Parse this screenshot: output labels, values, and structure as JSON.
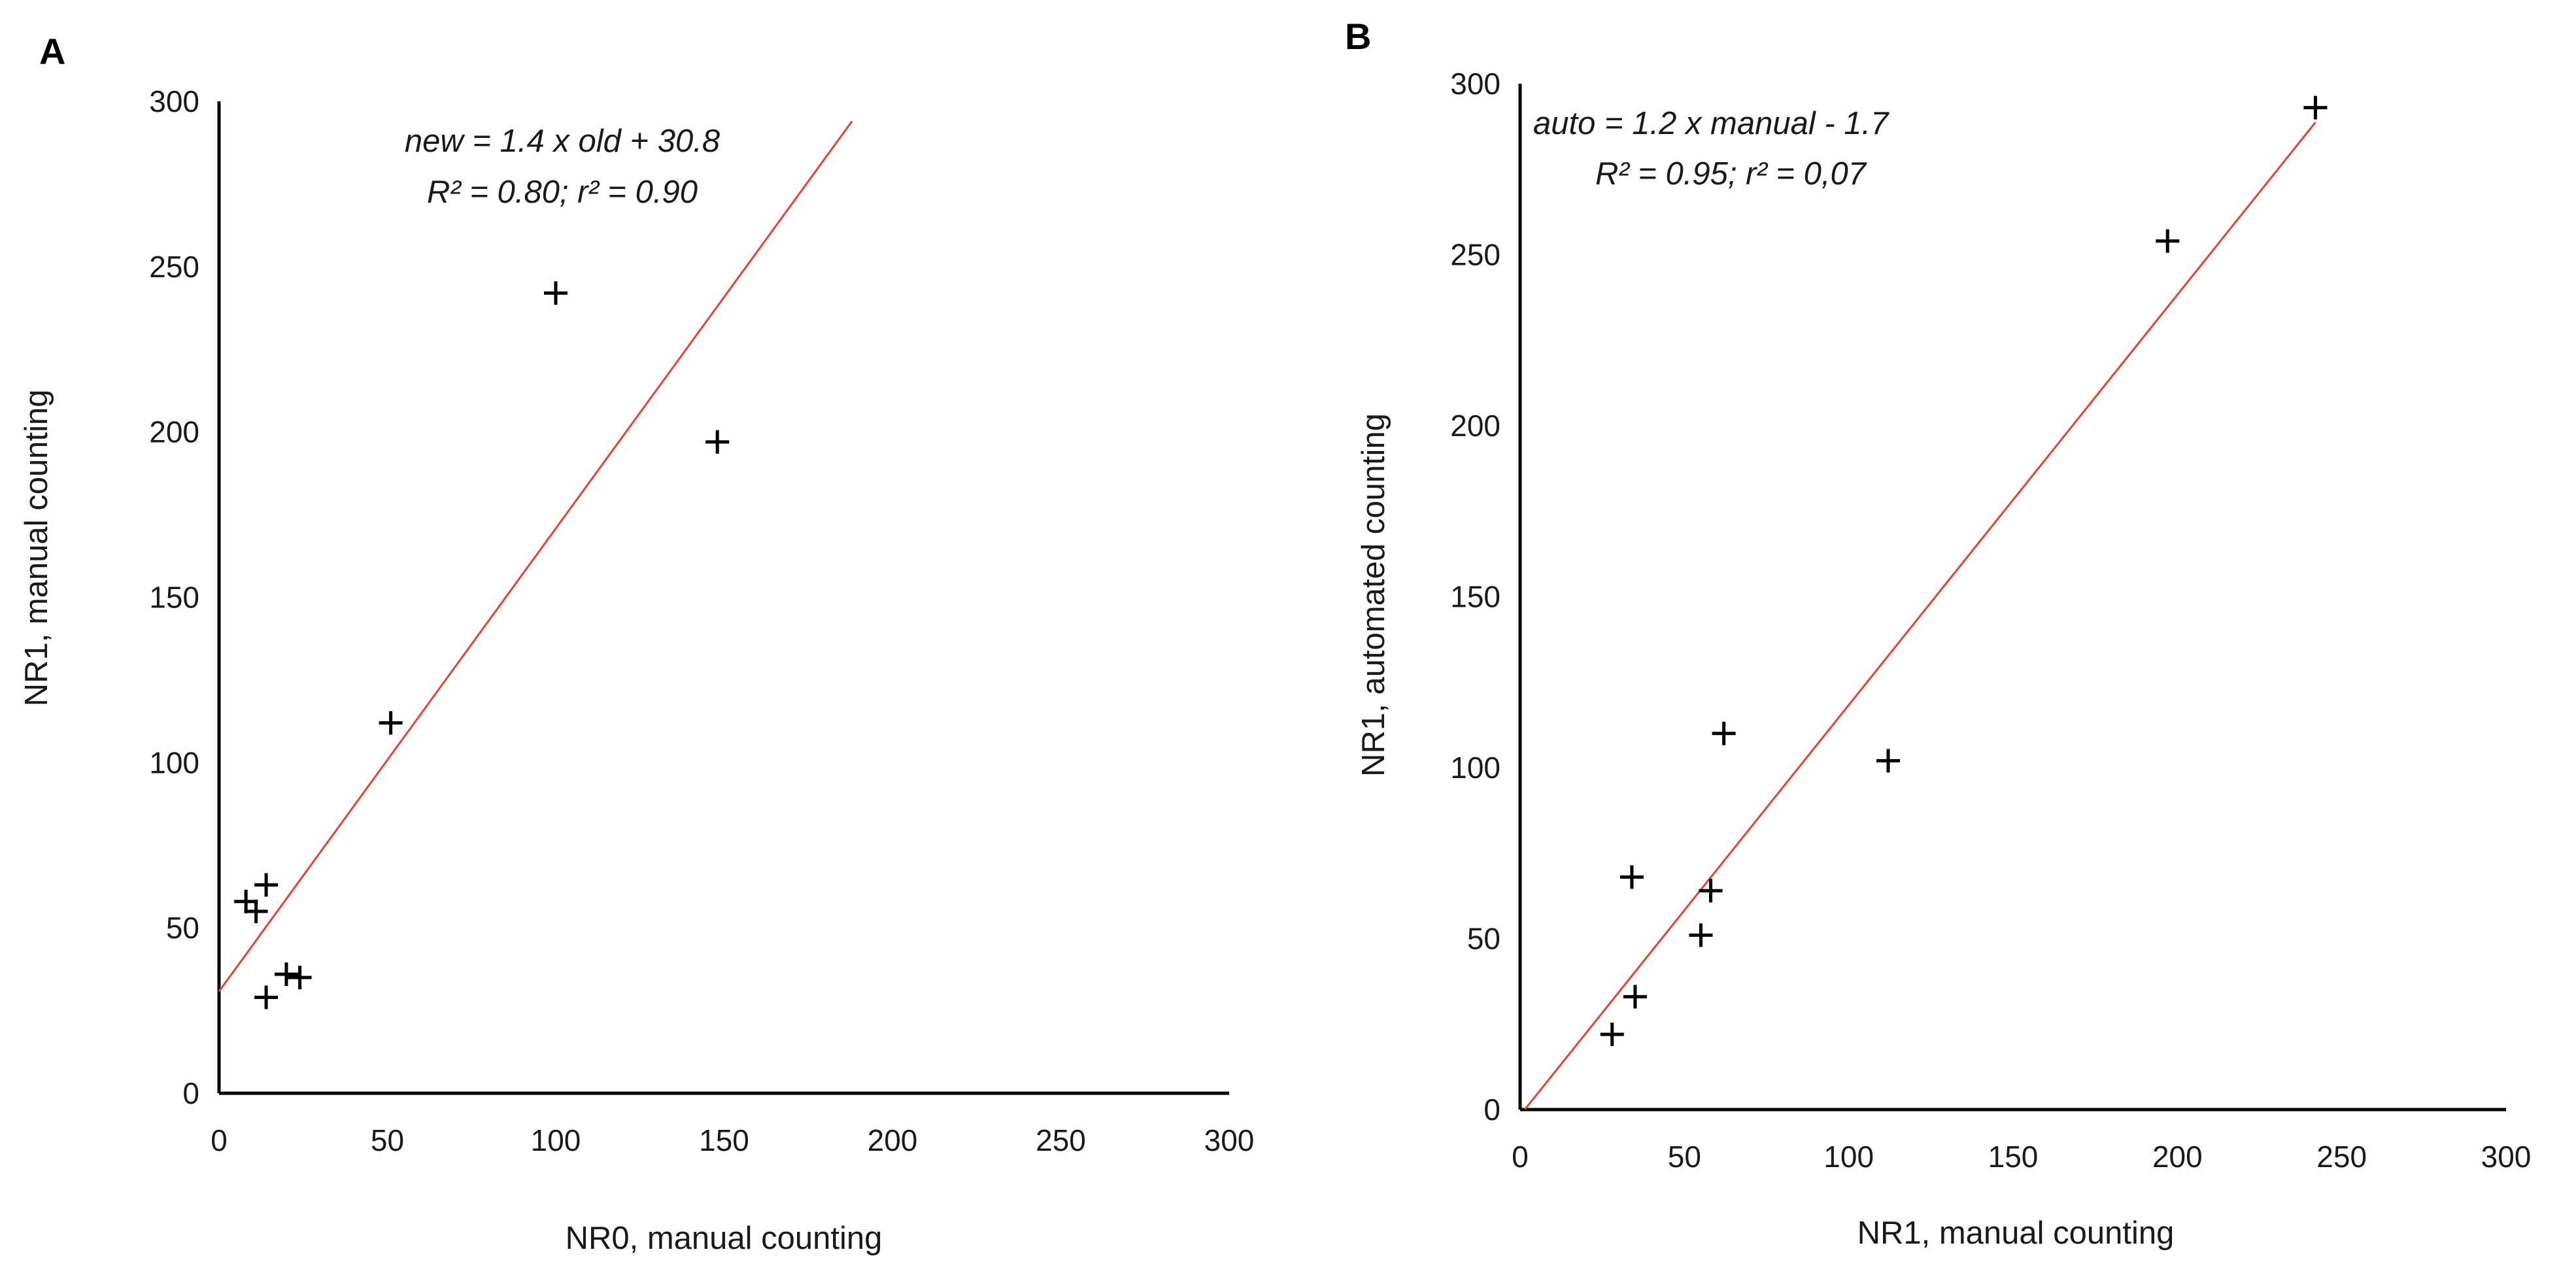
{
  "colors": {
    "fit_line": "#e8413a",
    "axes": "#000000",
    "points": "#000000"
  },
  "chart_data": [
    {
      "id": "A",
      "type": "scatter",
      "panel_label": "A",
      "xlabel": "NR0, manual counting",
      "ylabel": "NR1, manual counting",
      "xlim": [
        0,
        300
      ],
      "ylim": [
        0,
        300
      ],
      "xticks": [
        0,
        50,
        100,
        150,
        200,
        250,
        300
      ],
      "yticks": [
        0,
        50,
        100,
        150,
        200,
        250,
        300
      ],
      "marker": "plus",
      "points": [
        {
          "x": 8,
          "y": 58
        },
        {
          "x": 11,
          "y": 55
        },
        {
          "x": 14,
          "y": 63
        },
        {
          "x": 14,
          "y": 29
        },
        {
          "x": 20,
          "y": 36
        },
        {
          "x": 24,
          "y": 35
        },
        {
          "x": 51,
          "y": 112
        },
        {
          "x": 100,
          "y": 242
        },
        {
          "x": 148,
          "y": 197
        }
      ],
      "fit": {
        "slope": 1.4,
        "intercept": 30.8,
        "x_range": [
          0,
          188
        ]
      },
      "annotation": [
        "new = 1.4 x old + 30.8",
        "R² = 0.80; r² = 0.90"
      ]
    },
    {
      "id": "B",
      "type": "scatter",
      "panel_label": "B",
      "xlabel": "NR1, manual counting",
      "ylabel": "NR1, automated counting",
      "xlim": [
        0,
        300
      ],
      "ylim": [
        0,
        300
      ],
      "xticks": [
        0,
        50,
        100,
        150,
        200,
        250,
        300
      ],
      "yticks": [
        0,
        50,
        100,
        150,
        200,
        250,
        300
      ],
      "marker": "plus",
      "points": [
        {
          "x": 28,
          "y": 22
        },
        {
          "x": 35,
          "y": 33
        },
        {
          "x": 34,
          "y": 68
        },
        {
          "x": 55,
          "y": 51
        },
        {
          "x": 58,
          "y": 64
        },
        {
          "x": 62,
          "y": 110
        },
        {
          "x": 112,
          "y": 102
        },
        {
          "x": 197,
          "y": 254
        },
        {
          "x": 242,
          "y": 293
        }
      ],
      "fit": {
        "slope": 1.2,
        "intercept": -1.7,
        "x_range": [
          1.5,
          242
        ]
      },
      "annotation": [
        "auto = 1.2 x manual - 1.7",
        "R² = 0.95; r² = 0,07"
      ]
    }
  ]
}
